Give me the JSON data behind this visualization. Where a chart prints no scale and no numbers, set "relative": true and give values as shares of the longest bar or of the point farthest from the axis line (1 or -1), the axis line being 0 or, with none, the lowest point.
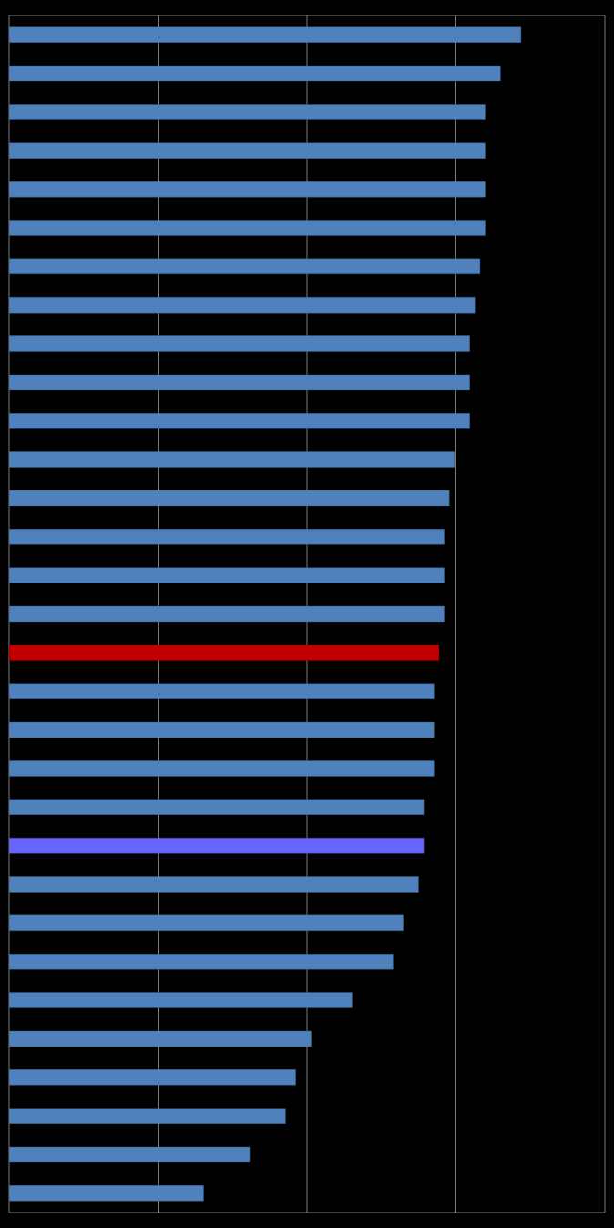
{
  "chart_data": {
    "type": "bar",
    "orientation": "horizontal",
    "relative": true,
    "grid": "x",
    "categories": [
      null,
      null,
      null,
      null,
      null,
      null,
      null,
      null,
      null,
      null,
      null,
      null,
      null,
      null,
      null,
      null,
      null,
      null,
      null,
      null,
      null,
      null,
      null,
      null,
      null,
      null,
      null,
      null,
      null,
      null,
      null
    ],
    "values": [
      1.0,
      0.96,
      0.93,
      0.93,
      0.93,
      0.93,
      0.92,
      0.91,
      0.9,
      0.9,
      0.9,
      0.87,
      0.86,
      0.85,
      0.85,
      0.85,
      0.84,
      0.83,
      0.83,
      0.83,
      0.81,
      0.81,
      0.8,
      0.77,
      0.75,
      0.67,
      0.59,
      0.56,
      0.54,
      0.47,
      0.38
    ],
    "colors": [
      "#4f81bd",
      "#4f81bd",
      "#4f81bd",
      "#4f81bd",
      "#4f81bd",
      "#4f81bd",
      "#4f81bd",
      "#4f81bd",
      "#4f81bd",
      "#4f81bd",
      "#4f81bd",
      "#4f81bd",
      "#4f81bd",
      "#4f81bd",
      "#4f81bd",
      "#4f81bd",
      "#c00000",
      "#4f81bd",
      "#4f81bd",
      "#4f81bd",
      "#4f81bd",
      "#6666ff",
      "#4f81bd",
      "#4f81bd",
      "#4f81bd",
      "#4f81bd",
      "#4f81bd",
      "#4f81bd",
      "#4f81bd",
      "#4f81bd",
      "#4f81bd"
    ]
  }
}
